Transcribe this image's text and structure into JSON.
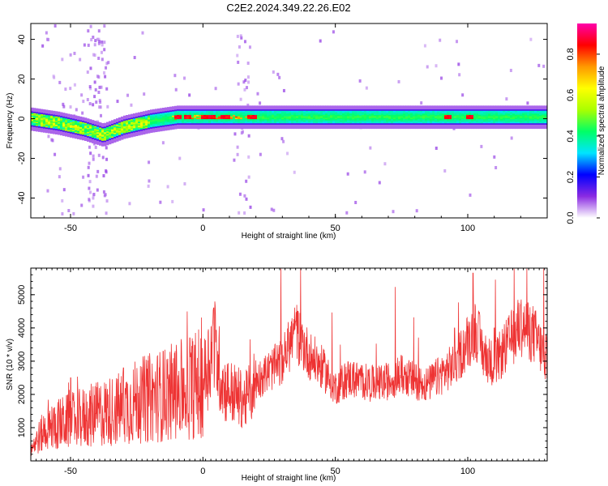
{
  "figure": {
    "title": "C2E2.2024.349.22.26.E02"
  },
  "chart_data": [
    {
      "type": "heatmap",
      "xlabel": "Height of straight line (km)",
      "ylabel": "Frequency (Hz)",
      "xlim": [
        -65,
        130
      ],
      "ylim": [
        -50,
        48
      ],
      "x_ticks": [
        -50,
        0,
        50,
        100
      ],
      "y_ticks": [
        -40,
        -20,
        0,
        20,
        40
      ],
      "grid": false,
      "colorbar": {
        "label": "Normalized spectral amplitude",
        "range": [
          0,
          0.95
        ],
        "ticks": [
          0.0,
          0.2,
          0.4,
          0.6,
          0.8
        ],
        "colors": [
          "#ffffff",
          "#8a2be2",
          "#0000ff",
          "#00e5ff",
          "#00ff66",
          "#aaff00",
          "#ffff00",
          "#ff9900",
          "#ff0000",
          "#ff00aa"
        ]
      },
      "band_center_hz": [
        [
          -65,
          0
        ],
        [
          -55,
          -2
        ],
        [
          -45,
          -5
        ],
        [
          -38,
          -8
        ],
        [
          -30,
          -4
        ],
        [
          -20,
          -1
        ],
        [
          -10,
          1
        ],
        [
          0,
          1
        ],
        [
          10,
          1
        ],
        [
          20,
          1
        ],
        [
          50,
          1
        ],
        [
          100,
          1
        ],
        [
          130,
          1
        ]
      ],
      "band_halfwidth_hz": 3,
      "peak_amplitude_x": [
        -10,
        -6,
        0,
        3,
        8,
        18,
        92,
        100
      ]
    },
    {
      "type": "line",
      "xlabel": "Height of straight line (km)",
      "ylabel": "SNR (10 * v/v)",
      "xlim": [
        -65,
        130
      ],
      "ylim": [
        0,
        5800
      ],
      "x_ticks": [
        -50,
        0,
        50,
        100
      ],
      "y_ticks": [
        1000,
        2000,
        3000,
        4000,
        5000
      ],
      "grid": false,
      "series": [
        {
          "color": "#ee3333",
          "x": [
            -65,
            -60,
            -55,
            -50,
            -45,
            -40,
            -35,
            -30,
            -25,
            -20,
            -15,
            -10,
            -5,
            0,
            4,
            8,
            12,
            16,
            20,
            25,
            30,
            35,
            40,
            45,
            50,
            55,
            60,
            65,
            70,
            75,
            80,
            85,
            90,
            95,
            100,
            103,
            106,
            110,
            115,
            120,
            125,
            130
          ],
          "y": [
            400,
            900,
            1100,
            1200,
            1300,
            1400,
            1500,
            1600,
            1800,
            1900,
            2000,
            2100,
            2200,
            2400,
            3500,
            2200,
            2000,
            1800,
            2400,
            2700,
            3000,
            3900,
            3200,
            2800,
            2200,
            2500,
            2400,
            2300,
            2400,
            2600,
            2400,
            2300,
            2600,
            2900,
            3600,
            4000,
            3200,
            2900,
            3500,
            4100,
            3800,
            3000
          ]
        }
      ],
      "spikes": [
        [
          -50,
          2500
        ],
        [
          -30,
          2800
        ],
        [
          -15,
          3300
        ],
        [
          -5,
          3700
        ],
        [
          4,
          4600
        ],
        [
          35,
          4200
        ],
        [
          95,
          4000
        ],
        [
          102,
          5650
        ],
        [
          110,
          4000
        ],
        [
          120,
          4700
        ]
      ]
    }
  ]
}
